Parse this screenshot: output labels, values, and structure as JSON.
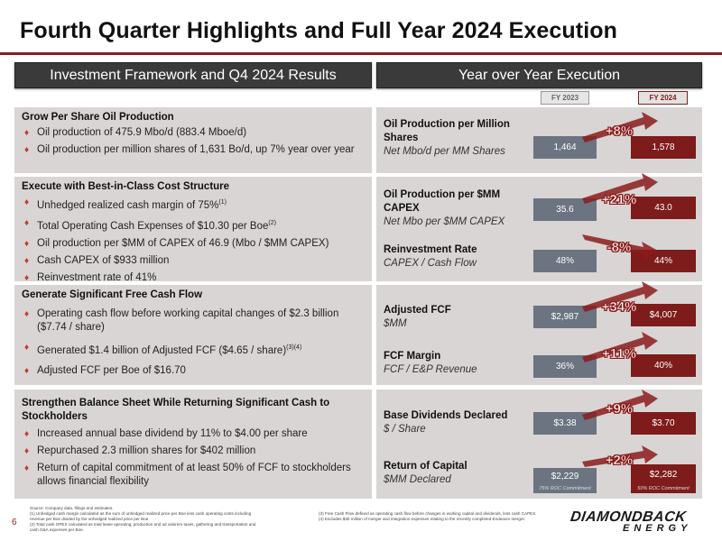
{
  "title": "Fourth Quarter Highlights and Full Year 2024 Execution",
  "left_header": "Investment Framework and Q4 2024 Results",
  "right_header": "Year over Year Execution",
  "fy_labels": {
    "prior": "FY 2023",
    "current": "FY 2024"
  },
  "sections": [
    {
      "title": "Grow Per Share Oil Production",
      "bullets": [
        "Oil production of 475.9 Mbo/d (883.4 Mboe/d)",
        "Oil production per million shares of 1,631 Bo/d, up 7% year over year"
      ]
    },
    {
      "title": "Execute with Best-in-Class Cost Structure",
      "bullets": [
        "Unhedged realized cash margin of 75%",
        "Total Operating Cash Expenses of $10.30 per Boe",
        "Oil production per $MM of CAPEX of 46.9 (Mbo / $MM CAPEX)",
        "Cash CAPEX of $933 million",
        "Reinvestment rate of 41%"
      ],
      "sups": {
        "b0": "(1)",
        "b1": "(2)"
      }
    },
    {
      "title": "Generate Significant Free Cash Flow",
      "bullets": [
        "Operating cash flow before working capital changes of $2.3 billion ($7.74 / share)",
        "Generated $1.4 billion of Adjusted FCF ($4.65 / share)",
        "Adjusted FCF per Boe of $16.70"
      ],
      "sups": {
        "b1": "(3)(4)"
      }
    },
    {
      "title": "Strengthen Balance Sheet While Returning Significant Cash to Stockholders",
      "bullets": [
        "Increased annual base dividend by 11% to $4.00 per share",
        "Repurchased 2.3 million shares for $402 million",
        "Return of capital commitment of at least 50% of FCF to stockholders allows financial flexibility"
      ]
    }
  ],
  "metrics": [
    {
      "title": "Oil Production per Million Shares",
      "subtitle": "Net Mbo/d per MM Shares",
      "fy2023": "1,464",
      "fy2024": "1,578",
      "change": "+8%"
    },
    {
      "title": "Oil Production per $MM CAPEX",
      "subtitle": "Net Mbo per $MM CAPEX",
      "fy2023": "35.6",
      "fy2024": "43.0",
      "change": "+21%"
    },
    {
      "title": "Reinvestment Rate",
      "subtitle": "CAPEX / Cash Flow",
      "fy2023": "48%",
      "fy2024": "44%",
      "change": "-8%"
    },
    {
      "title": "Adjusted FCF",
      "subtitle": "$MM",
      "fy2023": "$2,987",
      "fy2024": "$4,007",
      "change": "+34%"
    },
    {
      "title": "FCF Margin",
      "subtitle": "FCF / E&P Revenue",
      "fy2023": "36%",
      "fy2024": "40%",
      "change": "+11%"
    },
    {
      "title": "Base Dividends Declared",
      "subtitle": "$ / Share",
      "fy2023": "$3.38",
      "fy2024": "$3.70",
      "change": "+9%"
    },
    {
      "title": "Return of Capital",
      "subtitle": "$MM Declared",
      "fy2023": "$2,229",
      "fy2024": "$2,282",
      "change": "+2%",
      "note2023": "75% ROC Commitment",
      "note2024": "50% ROC Commitment"
    }
  ],
  "footnotes": {
    "source": "Source: Company data, filings and estimates.",
    "n1": "(1)     Unhedged cash margin calculated as the sum of unhedged realized price per Boe less cash operating costs including",
    "n1b": "         revenue per Boe divided by the unhedged realized price per Boe.",
    "n2": "(2)     Total cash OPEX calculated as total lease operating, production and ad valorem taxes, gathering and transportation and",
    "n2b": "         cash G&A expenses per Boe.",
    "n3": "(3)     Free Cash Flow defined as operating cash flow before changes in working capital and dividends, less cash CAPEX.",
    "n4": "(4)     Excludes $30 million of merger and integration expenses relating to the recently completed Endeavor merger."
  },
  "page_number": "6",
  "logo": {
    "top": "DIAMONDBACK",
    "bottom": "ENERGY"
  },
  "colors": {
    "accent": "#8b1c1c",
    "panel": "#d9d5d4",
    "header": "#3a3a3a",
    "bar2023": "#6b7480",
    "bar2024": "#7d1c1a"
  }
}
